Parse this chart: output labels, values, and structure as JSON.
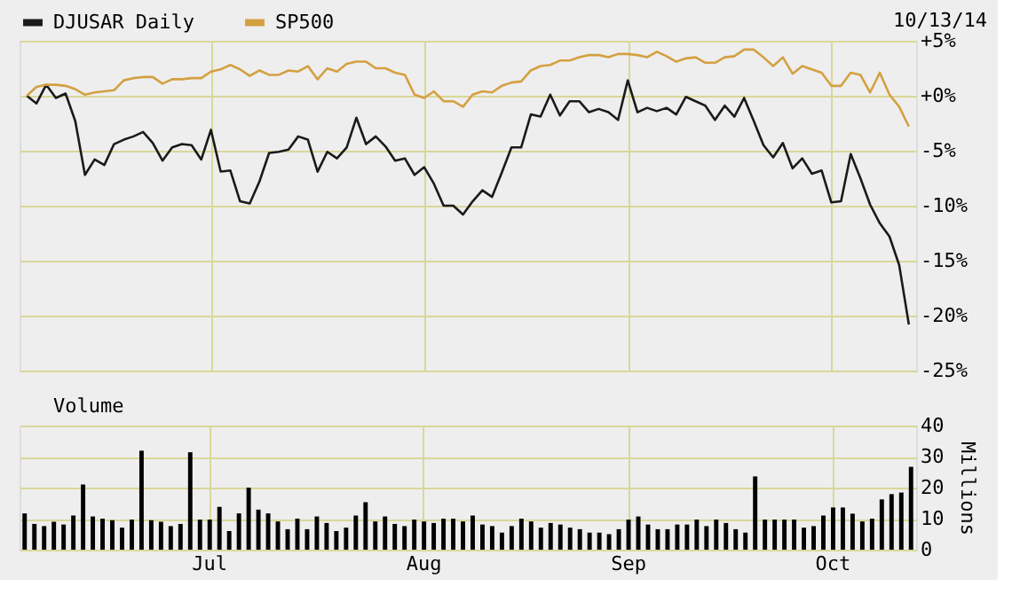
{
  "chart_data": [
    {
      "type": "line",
      "annotations": [
        "10/13/14"
      ],
      "categories": [
        null,
        null,
        null,
        null,
        null,
        null,
        null,
        null,
        null,
        null,
        null,
        null,
        null,
        null,
        null,
        null,
        null,
        null,
        null,
        null,
        null,
        null,
        null,
        null,
        null,
        null,
        null,
        null,
        null,
        null,
        null,
        null,
        null,
        null,
        null,
        null,
        null,
        null,
        null,
        null,
        null,
        null,
        null,
        null,
        null,
        null,
        null,
        null,
        null,
        null,
        null,
        null,
        null,
        null,
        null,
        null,
        null,
        null,
        null,
        null,
        null,
        null,
        null,
        null,
        null,
        null,
        null,
        null,
        null,
        null,
        null,
        null,
        null,
        null,
        null,
        null,
        null,
        null,
        null,
        null,
        null,
        null,
        null,
        null,
        null,
        null,
        null,
        null,
        null,
        null,
        null,
        null
      ],
      "series": [
        {
          "name": "DJUSAR Daily",
          "color": "#1a1a1a",
          "values": [
            0,
            -0.7,
            1.0,
            -0.2,
            0.2,
            -2.3,
            -7.2,
            -5.8,
            -6.3,
            -4.4,
            -4.0,
            -3.7,
            -3.3,
            -4.3,
            -5.9,
            -4.7,
            -4.4,
            -4.5,
            -5.8,
            -3.1,
            -6.9,
            -6.8,
            -9.6,
            -9.8,
            -7.8,
            -5.2,
            -5.1,
            -4.9,
            -3.7,
            -4.0,
            -6.9,
            -5.1,
            -5.7,
            -4.7,
            -2.0,
            -4.4,
            -3.7,
            -4.6,
            -5.9,
            -5.7,
            -7.2,
            -6.5,
            -8.0,
            -10.0,
            -10.0,
            -10.8,
            -9.6,
            -8.6,
            -9.2,
            -7.0,
            -4.7,
            -4.7,
            -1.7,
            -1.9,
            0.1,
            -1.8,
            -0.5,
            -0.5,
            -1.5,
            -1.2,
            -1.5,
            -2.2,
            1.4,
            -1.5,
            -1.1,
            -1.4,
            -1.1,
            -1.7,
            -0.1,
            -0.5,
            -0.9,
            -2.2,
            -0.9,
            -1.9,
            -0.2,
            -2.3,
            -4.5,
            -5.6,
            -4.3,
            -6.6,
            -5.7,
            -7.1,
            -6.8,
            -9.7,
            -9.6,
            -5.3,
            -7.5,
            -9.9,
            -11.6,
            -12.8,
            -15.4,
            -20.8
          ]
        },
        {
          "name": "SP500",
          "color": "#d4a040",
          "values": [
            0,
            0.8,
            1.0,
            1.0,
            0.9,
            0.6,
            0.1,
            0.3,
            0.4,
            0.5,
            1.4,
            1.6,
            1.7,
            1.7,
            1.1,
            1.5,
            1.5,
            1.6,
            1.6,
            2.2,
            2.4,
            2.8,
            2.4,
            1.8,
            2.3,
            1.9,
            1.9,
            2.3,
            2.2,
            2.7,
            1.5,
            2.5,
            2.2,
            2.9,
            3.1,
            3.1,
            2.5,
            2.5,
            2.1,
            1.9,
            0.1,
            -0.2,
            0.4,
            -0.5,
            -0.5,
            -1.0,
            0.1,
            0.4,
            0.3,
            0.9,
            1.2,
            1.3,
            2.3,
            2.7,
            2.8,
            3.2,
            3.2,
            3.5,
            3.7,
            3.7,
            3.5,
            3.8,
            3.8,
            3.7,
            3.5,
            4.0,
            3.6,
            3.1,
            3.4,
            3.5,
            3.0,
            3.0,
            3.5,
            3.6,
            4.2,
            4.2,
            3.5,
            2.7,
            3.5,
            2.0,
            2.7,
            2.4,
            2.1,
            0.9,
            0.9,
            2.1,
            1.9,
            0.3,
            2.1,
            0.1,
            -1.0,
            -2.8
          ]
        }
      ],
      "ylim": [
        -25,
        5
      ],
      "yticks": [
        {
          "value": 5,
          "label": "+5%"
        },
        {
          "value": 0,
          "label": "+0%"
        },
        {
          "value": -5,
          "label": "-5%"
        },
        {
          "value": -10,
          "label": "-10%"
        },
        {
          "value": -15,
          "label": "-15%"
        },
        {
          "value": -20,
          "label": "-20%"
        },
        {
          "value": -25,
          "label": "-25%"
        }
      ],
      "grid": true,
      "legend": "top left",
      "tick_labels": "y"
    },
    {
      "type": "bar",
      "ylabel": "Millions",
      "categories": [
        null,
        null,
        null,
        null,
        null,
        null,
        null,
        null,
        null,
        null,
        null,
        null,
        null,
        null,
        null,
        null,
        null,
        null,
        null,
        "Jul",
        null,
        null,
        null,
        null,
        null,
        null,
        null,
        null,
        null,
        null,
        null,
        null,
        null,
        null,
        null,
        null,
        null,
        null,
        null,
        null,
        null,
        "Aug",
        null,
        null,
        null,
        null,
        null,
        null,
        null,
        null,
        null,
        null,
        null,
        null,
        null,
        null,
        null,
        null,
        null,
        null,
        null,
        null,
        "Sep",
        null,
        null,
        null,
        null,
        null,
        null,
        null,
        null,
        null,
        null,
        null,
        null,
        null,
        null,
        null,
        null,
        null,
        null,
        null,
        null,
        "Oct",
        null,
        null,
        null,
        null,
        null,
        null,
        null,
        null
      ],
      "series": [
        {
          "name": "Volume",
          "color": "#000000",
          "values": [
            11.7,
            8.3,
            7.6,
            9.0,
            8.1,
            11.0,
            21.0,
            10.7,
            10.0,
            9.5,
            7.1,
            9.7,
            31.9,
            9.5,
            9.0,
            7.6,
            8.3,
            31.4,
            9.7,
            9.7,
            13.8,
            6.0,
            11.7,
            20.0,
            12.9,
            11.7,
            9.1,
            6.6,
            10.0,
            6.6,
            10.7,
            8.6,
            6.0,
            7.1,
            11.0,
            15.3,
            9.1,
            10.7,
            8.3,
            7.6,
            9.7,
            9.1,
            8.6,
            10.0,
            10.0,
            9.1,
            11.0,
            8.1,
            7.6,
            5.5,
            7.6,
            10.0,
            9.1,
            7.1,
            8.6,
            8.1,
            7.1,
            6.6,
            5.5,
            5.5,
            5.0,
            6.6,
            9.7,
            10.7,
            8.1,
            6.6,
            6.6,
            8.1,
            8.1,
            9.7,
            7.6,
            9.7,
            8.6,
            6.6,
            5.5,
            23.6,
            9.7,
            9.7,
            9.7,
            9.7,
            7.1,
            7.6,
            11.0,
            13.6,
            13.6,
            11.6,
            9.1,
            10.0,
            16.2,
            17.9,
            18.4,
            26.7
          ]
        }
      ],
      "ylim": [
        0,
        40
      ],
      "yticks": [
        0,
        10,
        20,
        30,
        40
      ],
      "grid": true,
      "legend": "top left"
    }
  ]
}
